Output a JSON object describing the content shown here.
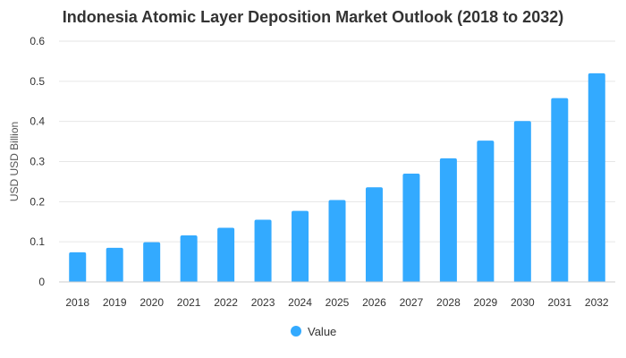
{
  "chart_data": {
    "type": "bar",
    "title": "Indonesia Atomic Layer Deposition Market Outlook (2018 to 2032)",
    "xlabel": "",
    "ylabel": "USD USD Billion",
    "categories": [
      "2018",
      "2019",
      "2020",
      "2021",
      "2022",
      "2023",
      "2024",
      "2025",
      "2026",
      "2027",
      "2028",
      "2029",
      "2030",
      "2031",
      "2032"
    ],
    "series": [
      {
        "name": "Value",
        "color": "#33aaff",
        "values": [
          0.074,
          0.085,
          0.099,
          0.116,
          0.135,
          0.155,
          0.177,
          0.204,
          0.236,
          0.27,
          0.308,
          0.352,
          0.401,
          0.458,
          0.52
        ]
      }
    ],
    "yticks": [
      "0",
      "0.1",
      "0.2",
      "0.3",
      "0.4",
      "0.5",
      "0.6"
    ],
    "ylim": [
      0,
      0.6
    ],
    "grid": true,
    "legend_position": "bottom-center",
    "gridline_color": "#e6e6e6"
  }
}
